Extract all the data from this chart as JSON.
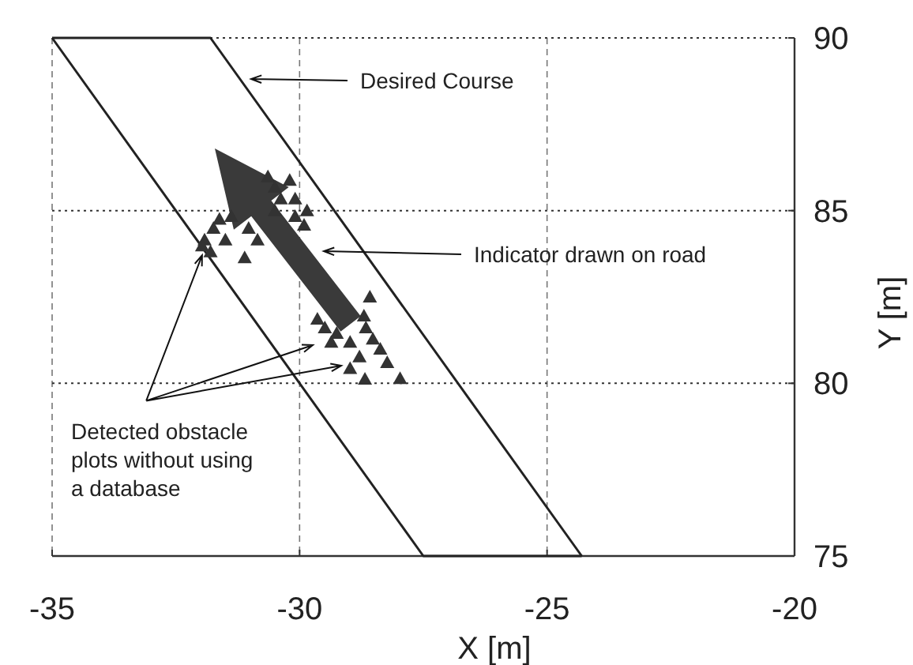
{
  "chart_data": {
    "type": "scatter",
    "xlabel": "X [m]",
    "ylabel": "Y [m]",
    "xlim": [
      -35,
      -20
    ],
    "xticks": [
      -35,
      -30,
      -25,
      -20
    ],
    "ylim": [
      75,
      90
    ],
    "yticks": [
      75,
      80,
      85,
      90
    ],
    "grid": true,
    "series": [
      {
        "type": "line",
        "color": "#222222",
        "x": [
          -35,
          -31.8,
          -24.3
        ],
        "values": [
          90,
          90,
          75
        ]
      },
      {
        "type": "line",
        "color": "#222222",
        "x": [
          -35,
          -27.5,
          -24.3
        ],
        "values": [
          90,
          75,
          75
        ]
      },
      {
        "type": "scatter",
        "color": "#333333",
        "marker": "triangle",
        "x": [
          -28.58,
          -29.64,
          -29.49,
          -29.36,
          -28.98,
          -28.7,
          -28.66,
          -28.52,
          -28.37,
          -28.79,
          -28.98,
          -28.23,
          -28.68,
          -27.97,
          -29.25,
          -30.64,
          -30.2,
          -30.5,
          -29.85,
          -29.91,
          -30.09,
          -30.38,
          -30.85,
          -31.11,
          -31.38,
          -31.62,
          -31.74,
          -31.92,
          -31.97,
          -31.8,
          -31.5,
          -31.03,
          -30.5,
          -30.09
        ],
        "values": [
          82.5,
          81.86,
          81.61,
          81.19,
          81.19,
          81.95,
          81.61,
          81.28,
          80.99,
          80.77,
          80.43,
          80.6,
          80.12,
          80.14,
          81.45,
          85.98,
          85.88,
          85.68,
          85.0,
          84.58,
          84.83,
          85.34,
          84.15,
          83.64,
          84.83,
          84.75,
          84.49,
          84.15,
          83.98,
          83.81,
          84.15,
          84.49,
          85.0,
          85.34
        ]
      }
    ],
    "annotations": [
      "Desired Course",
      "Indicator drawn on road",
      {
        "text": "Detected obstacle\nplots without using\na database",
        "x": -31.97,
        "y": 83.98
      }
    ]
  }
}
